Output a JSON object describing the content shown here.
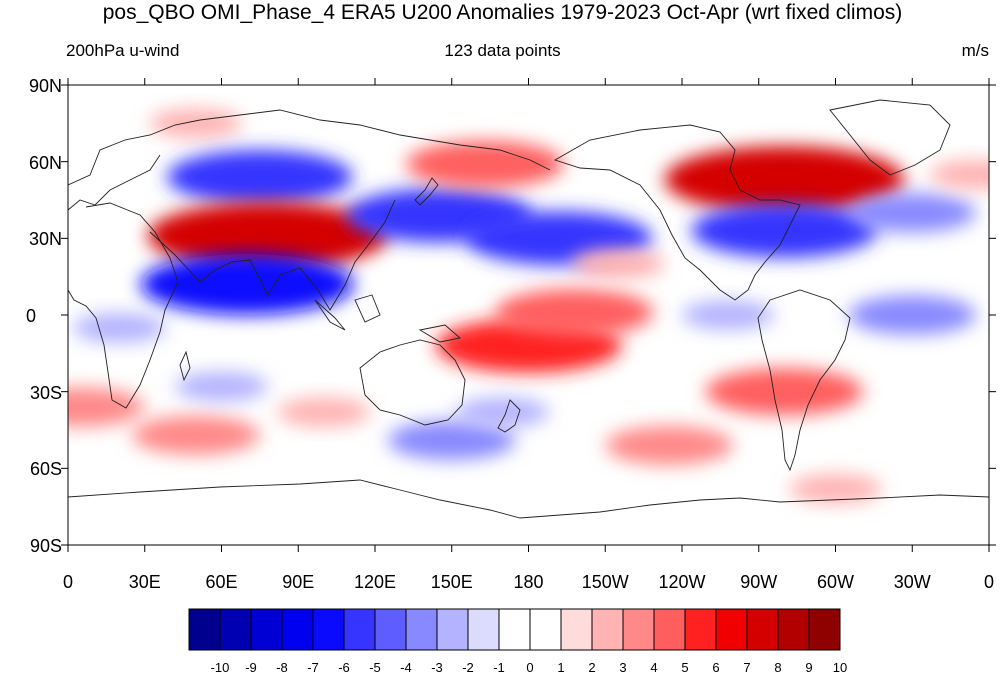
{
  "title": "pos_QBO OMI_Phase_4 ERA5 U200 Anomalies 1979-2023 Oct-Apr (wrt fixed climos)",
  "subtitle_left": "200hPa u-wind",
  "subtitle_center": "123 data points",
  "subtitle_right": "m/s",
  "lat_labels": [
    "90N",
    "60N",
    "30N",
    "0",
    "30S",
    "60S",
    "90S"
  ],
  "lon_labels": [
    "0",
    "30E",
    "60E",
    "90E",
    "120E",
    "150E",
    "180",
    "150W",
    "120W",
    "90W",
    "60W",
    "30W",
    "0"
  ],
  "colorbar": {
    "labels": [
      "-10",
      "-9",
      "-8",
      "-7",
      "-6",
      "-5",
      "-4",
      "-3",
      "-2",
      "-1",
      "0",
      "1",
      "2",
      "3",
      "4",
      "5",
      "6",
      "7",
      "8",
      "9",
      "10"
    ],
    "colors": [
      "#00008f",
      "#0000b2",
      "#0000d4",
      "#0000f0",
      "#0a0aff",
      "#3535ff",
      "#5e5eff",
      "#8989ff",
      "#b3b3ff",
      "#dcdcff",
      "#ffffff",
      "#ffffff",
      "#ffdcdc",
      "#ffb3b3",
      "#ff8989",
      "#ff5e5e",
      "#ff2020",
      "#f00000",
      "#d40000",
      "#b20000",
      "#8f0000"
    ]
  },
  "anomalies": [
    {
      "lon": 50,
      "lat": 75,
      "value": 2
    },
    {
      "lon": 75,
      "lat": 54,
      "value": -5
    },
    {
      "lon": 78,
      "lat": 31,
      "value": 7
    },
    {
      "lon": 70,
      "lat": 12,
      "value": -6
    },
    {
      "lon": 145,
      "lat": 39,
      "value": -5
    },
    {
      "lon": 163,
      "lat": 59,
      "value": 4
    },
    {
      "lon": 192,
      "lat": 30,
      "value": -5
    },
    {
      "lon": 180,
      "lat": -12,
      "value": 5
    },
    {
      "lon": 198,
      "lat": 1,
      "value": 4
    },
    {
      "lon": 280,
      "lat": 53,
      "value": 7
    },
    {
      "lon": 280,
      "lat": 33,
      "value": -5
    },
    {
      "lon": 280,
      "lat": -30,
      "value": 4
    },
    {
      "lon": 215,
      "lat": 20,
      "value": 2
    },
    {
      "lon": 235,
      "lat": -51,
      "value": 3
    },
    {
      "lon": 330,
      "lat": 0,
      "value": -3
    },
    {
      "lon": 5,
      "lat": -36,
      "value": 3
    },
    {
      "lon": 50,
      "lat": -47,
      "value": 3
    },
    {
      "lon": 100,
      "lat": -38,
      "value": 2
    },
    {
      "lon": 150,
      "lat": -49,
      "value": -3
    },
    {
      "lon": 170,
      "lat": -38,
      "value": -2
    },
    {
      "lon": 20,
      "lat": -5,
      "value": -2
    },
    {
      "lon": 60,
      "lat": -28,
      "value": -2
    },
    {
      "lon": 300,
      "lat": -68,
      "value": 2
    },
    {
      "lon": 258,
      "lat": 0,
      "value": -2
    },
    {
      "lon": 330,
      "lat": 40,
      "value": -3
    },
    {
      "lon": 355,
      "lat": 55,
      "value": 2
    }
  ]
}
